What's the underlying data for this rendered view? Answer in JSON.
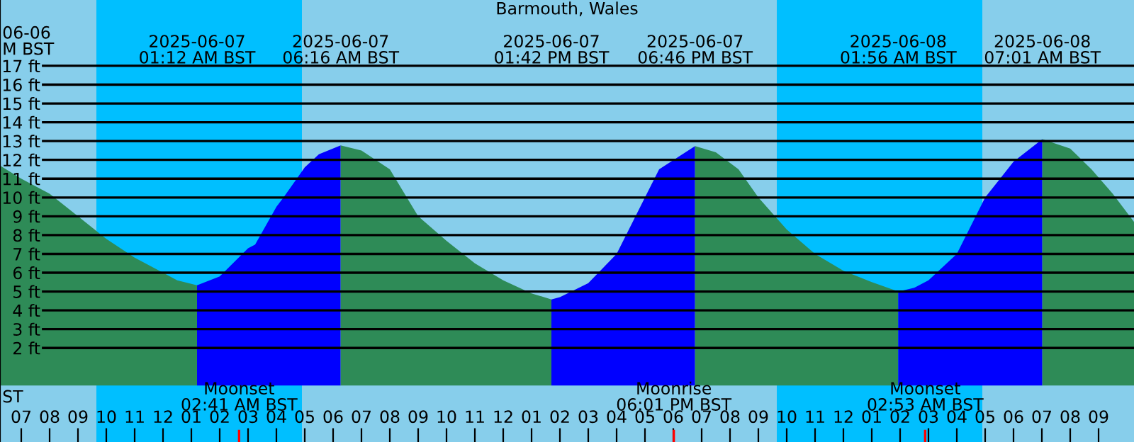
{
  "chart_data": {
    "type": "area",
    "title": "Barmouth, Wales",
    "series": [
      {
        "color": "#2e8b57",
        "x": [
          "2025-06-06T18:15",
          "2025-06-06T19:00",
          "2025-06-06T20:00",
          "2025-06-06T21:00",
          "2025-06-06T22:00",
          "2025-06-06T23:00",
          "2025-06-07T00:00",
          "2025-06-07T00:30",
          "2025-06-07T01:12"
        ],
        "values": [
          11.7,
          11.0,
          10.2,
          9.0,
          7.8,
          6.8,
          6.0,
          5.6,
          5.33
        ]
      },
      {
        "color": "#0000ff",
        "x": [
          "2025-06-07T01:12",
          "2025-06-07T02:00",
          "2025-06-07T03:00",
          "2025-06-07T03:15",
          "2025-06-07T04:00",
          "2025-06-07T04:15",
          "2025-06-07T05:00",
          "2025-06-07T05:30",
          "2025-06-07T06:16"
        ],
        "values": [
          5.33,
          5.8,
          7.3,
          7.5,
          9.5,
          10.0,
          11.6,
          12.3,
          12.77
        ]
      },
      {
        "color": "#2e8b57",
        "x": [
          "2025-06-07T06:16",
          "2025-06-07T07:00",
          "2025-06-07T08:00",
          "2025-06-07T09:00",
          "2025-06-07T10:00",
          "2025-06-07T11:00",
          "2025-06-07T12:00",
          "2025-06-07T13:00",
          "2025-06-07T13:42"
        ],
        "values": [
          12.77,
          12.5,
          11.5,
          9.0,
          7.7,
          6.5,
          5.6,
          4.9,
          4.58
        ]
      },
      {
        "color": "#0000ff",
        "x": [
          "2025-06-07T13:42",
          "2025-06-07T14:00",
          "2025-06-07T15:00",
          "2025-06-07T16:00",
          "2025-06-07T17:00",
          "2025-06-07T17:30",
          "2025-06-07T18:46"
        ],
        "values": [
          4.58,
          4.7,
          5.45,
          7.0,
          10.0,
          11.5,
          12.73
        ]
      },
      {
        "color": "#2e8b57",
        "x": [
          "2025-06-07T18:46",
          "2025-06-07T19:30",
          "2025-06-07T20:18",
          "2025-06-07T21:00",
          "2025-06-07T22:00",
          "2025-06-07T23:00",
          "2025-06-08T00:00",
          "2025-06-08T01:00",
          "2025-06-08T01:56"
        ],
        "values": [
          12.73,
          12.4,
          11.5,
          10.0,
          8.3,
          7.0,
          6.1,
          5.5,
          5.0
        ]
      },
      {
        "color": "#0000ff",
        "x": [
          "2025-06-08T01:56",
          "2025-06-08T02:30",
          "2025-06-08T03:00",
          "2025-06-08T04:00",
          "2025-06-08T05:00",
          "2025-06-08T06:00",
          "2025-06-08T07:01"
        ],
        "values": [
          5.0,
          5.2,
          5.6,
          7.0,
          10.0,
          11.9,
          13.1
        ]
      },
      {
        "color": "#2e8b57",
        "x": [
          "2025-06-08T07:01",
          "2025-06-08T08:00",
          "2025-06-08T08:45",
          "2025-06-08T09:30",
          "2025-06-08T10:15"
        ],
        "values": [
          13.1,
          12.6,
          11.5,
          10.2,
          8.7
        ]
      }
    ],
    "xlim": [
      "2025-06-06T18:15",
      "2025-06-08T10:15"
    ],
    "ylim": [
      -3,
      20.5
    ],
    "xticks": [
      {
        "value": "2025-06-06T19:00",
        "label": "07"
      },
      {
        "value": "2025-06-06T20:00",
        "label": "08"
      },
      {
        "value": "2025-06-06T21:00",
        "label": "09"
      },
      {
        "value": "2025-06-06T22:00",
        "label": "10"
      },
      {
        "value": "2025-06-06T23:00",
        "label": "11"
      },
      {
        "value": "2025-06-07T00:00",
        "label": "12"
      },
      {
        "value": "2025-06-07T01:00",
        "label": "01"
      },
      {
        "value": "2025-06-07T02:00",
        "label": "02"
      },
      {
        "value": "2025-06-07T03:00",
        "label": "03"
      },
      {
        "value": "2025-06-07T04:00",
        "label": "04"
      },
      {
        "value": "2025-06-07T05:00",
        "label": "05"
      },
      {
        "value": "2025-06-07T06:00",
        "label": "06"
      },
      {
        "value": "2025-06-07T07:00",
        "label": "07"
      },
      {
        "value": "2025-06-07T08:00",
        "label": "08"
      },
      {
        "value": "2025-06-07T09:00",
        "label": "09"
      },
      {
        "value": "2025-06-07T10:00",
        "label": "10"
      },
      {
        "value": "2025-06-07T11:00",
        "label": "11"
      },
      {
        "value": "2025-06-07T12:00",
        "label": "12"
      },
      {
        "value": "2025-06-07T13:00",
        "label": "01"
      },
      {
        "value": "2025-06-07T14:00",
        "label": "02"
      },
      {
        "value": "2025-06-07T15:00",
        "label": "03"
      },
      {
        "value": "2025-06-07T16:00",
        "label": "04"
      },
      {
        "value": "2025-06-07T17:00",
        "label": "05"
      },
      {
        "value": "2025-06-07T18:00",
        "label": "06"
      },
      {
        "value": "2025-06-07T19:00",
        "label": "07"
      },
      {
        "value": "2025-06-07T20:00",
        "label": "08"
      },
      {
        "value": "2025-06-07T21:00",
        "label": "09"
      },
      {
        "value": "2025-06-07T22:00",
        "label": "10"
      },
      {
        "value": "2025-06-07T23:00",
        "label": "11"
      },
      {
        "value": "2025-06-08T00:00",
        "label": "12"
      },
      {
        "value": "2025-06-08T01:00",
        "label": "01"
      },
      {
        "value": "2025-06-08T02:00",
        "label": "02"
      },
      {
        "value": "2025-06-08T03:00",
        "label": "03"
      },
      {
        "value": "2025-06-08T04:00",
        "label": "04"
      },
      {
        "value": "2025-06-08T05:00",
        "label": "05"
      },
      {
        "value": "2025-06-08T06:00",
        "label": "06"
      },
      {
        "value": "2025-06-08T07:00",
        "label": "07"
      },
      {
        "value": "2025-06-08T08:00",
        "label": "08"
      },
      {
        "value": "2025-06-08T09:00",
        "label": "09"
      }
    ],
    "yticks": [
      {
        "value": 2,
        "label": "2 ft"
      },
      {
        "value": 3,
        "label": "3 ft"
      },
      {
        "value": 4,
        "label": "4 ft"
      },
      {
        "value": 5,
        "label": "5 ft"
      },
      {
        "value": 6,
        "label": "6 ft"
      },
      {
        "value": 7,
        "label": "7 ft"
      },
      {
        "value": 8,
        "label": "8 ft"
      },
      {
        "value": 9,
        "label": "9 ft"
      },
      {
        "value": 10,
        "label": "10 ft"
      },
      {
        "value": 11,
        "label": "11 ft"
      },
      {
        "value": 12,
        "label": "12 ft"
      },
      {
        "value": 13,
        "label": "13 ft"
      },
      {
        "value": 14,
        "label": "14 ft"
      },
      {
        "value": 15,
        "label": "15 ft"
      },
      {
        "value": 16,
        "label": "16 ft"
      },
      {
        "value": 17,
        "label": "17 ft"
      }
    ],
    "grid": "y",
    "legend": false,
    "bands": [
      {
        "axis": "x",
        "from": "2025-06-06T18:15",
        "to": "2025-06-06T21:39",
        "color": "#87ceeb"
      },
      {
        "axis": "x",
        "from": "2025-06-06T21:39",
        "to": "2025-06-07T04:54",
        "color": "#00bfff"
      },
      {
        "axis": "x",
        "from": "2025-06-07T04:54",
        "to": "2025-06-07T21:39",
        "color": "#87ceeb"
      },
      {
        "axis": "x",
        "from": "2025-06-07T21:39",
        "to": "2025-06-08T04:54",
        "color": "#00bfff"
      },
      {
        "axis": "x",
        "from": "2025-06-08T04:54",
        "to": "2025-06-08T10:15",
        "color": "#87ceeb"
      }
    ],
    "x2lim": [
      "2025-06-06T18:15",
      "2025-06-08T10:15"
    ],
    "x2ticks": [
      {
        "value": "2025-06-07T01:12",
        "label": "2025-06-07\n01:12 AM BST"
      },
      {
        "value": "2025-06-07T06:16",
        "label": "2025-06-07\n06:16 AM BST"
      },
      {
        "value": "2025-06-07T13:42",
        "label": "2025-06-07\n01:42 PM BST"
      },
      {
        "value": "2025-06-07T18:46",
        "label": "2025-06-07\n06:46 PM BST"
      },
      {
        "value": "2025-06-08T01:56",
        "label": "2025-06-08\n01:56 AM BST"
      },
      {
        "value": "2025-06-08T07:01",
        "label": "2025-06-08\n07:01 AM BST"
      }
    ],
    "ref_lines": [
      {
        "axis": "x",
        "value": "2025-06-07T02:41",
        "label": "Moonset\n02:41 AM BST",
        "color": "#ff0000"
      },
      {
        "axis": "x",
        "value": "2025-06-07T18:01",
        "label": "Moonrise\n06:01 PM BST",
        "color": "#ff0000"
      },
      {
        "axis": "x",
        "value": "2025-06-08T02:53",
        "label": "Moonset\n02:53 AM BST",
        "color": "#ff0000"
      }
    ],
    "annotations": [
      "06-06\nM BST",
      "ST"
    ]
  }
}
